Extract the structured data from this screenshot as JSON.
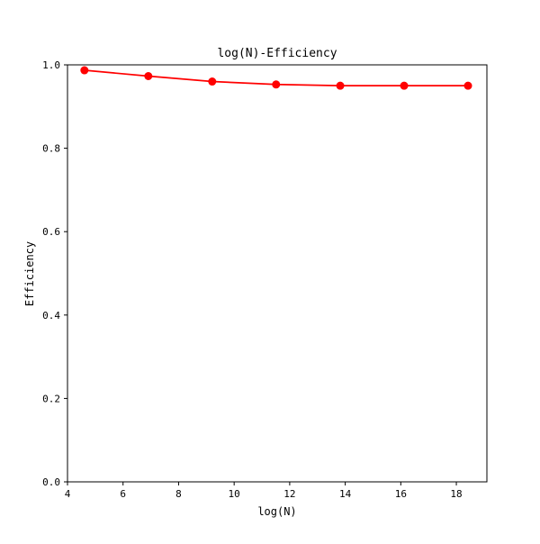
{
  "chart_data": {
    "type": "line",
    "title": "log(N)-Efficiency",
    "xlabel": "log(N)",
    "ylabel": "Efficiency",
    "xlim": [
      4.0,
      19.1
    ],
    "ylim": [
      0.0,
      1.0
    ],
    "xticks": [
      4,
      6,
      8,
      10,
      12,
      14,
      16,
      18
    ],
    "xtick_labels": [
      "4",
      "6",
      "8",
      "10",
      "12",
      "14",
      "16",
      "18"
    ],
    "yticks": [
      0.0,
      0.2,
      0.4,
      0.6,
      0.8,
      1.0
    ],
    "ytick_labels": [
      "0.0",
      "0.2",
      "0.4",
      "0.6",
      "0.8",
      "1.0"
    ],
    "grid": false,
    "series": [
      {
        "color": "#ff0000",
        "marker": "circle",
        "x": [
          4.61,
          6.91,
          9.21,
          11.51,
          13.82,
          16.12,
          18.42
        ],
        "y": [
          0.987,
          0.973,
          0.96,
          0.953,
          0.95,
          0.95,
          0.95
        ]
      }
    ]
  }
}
